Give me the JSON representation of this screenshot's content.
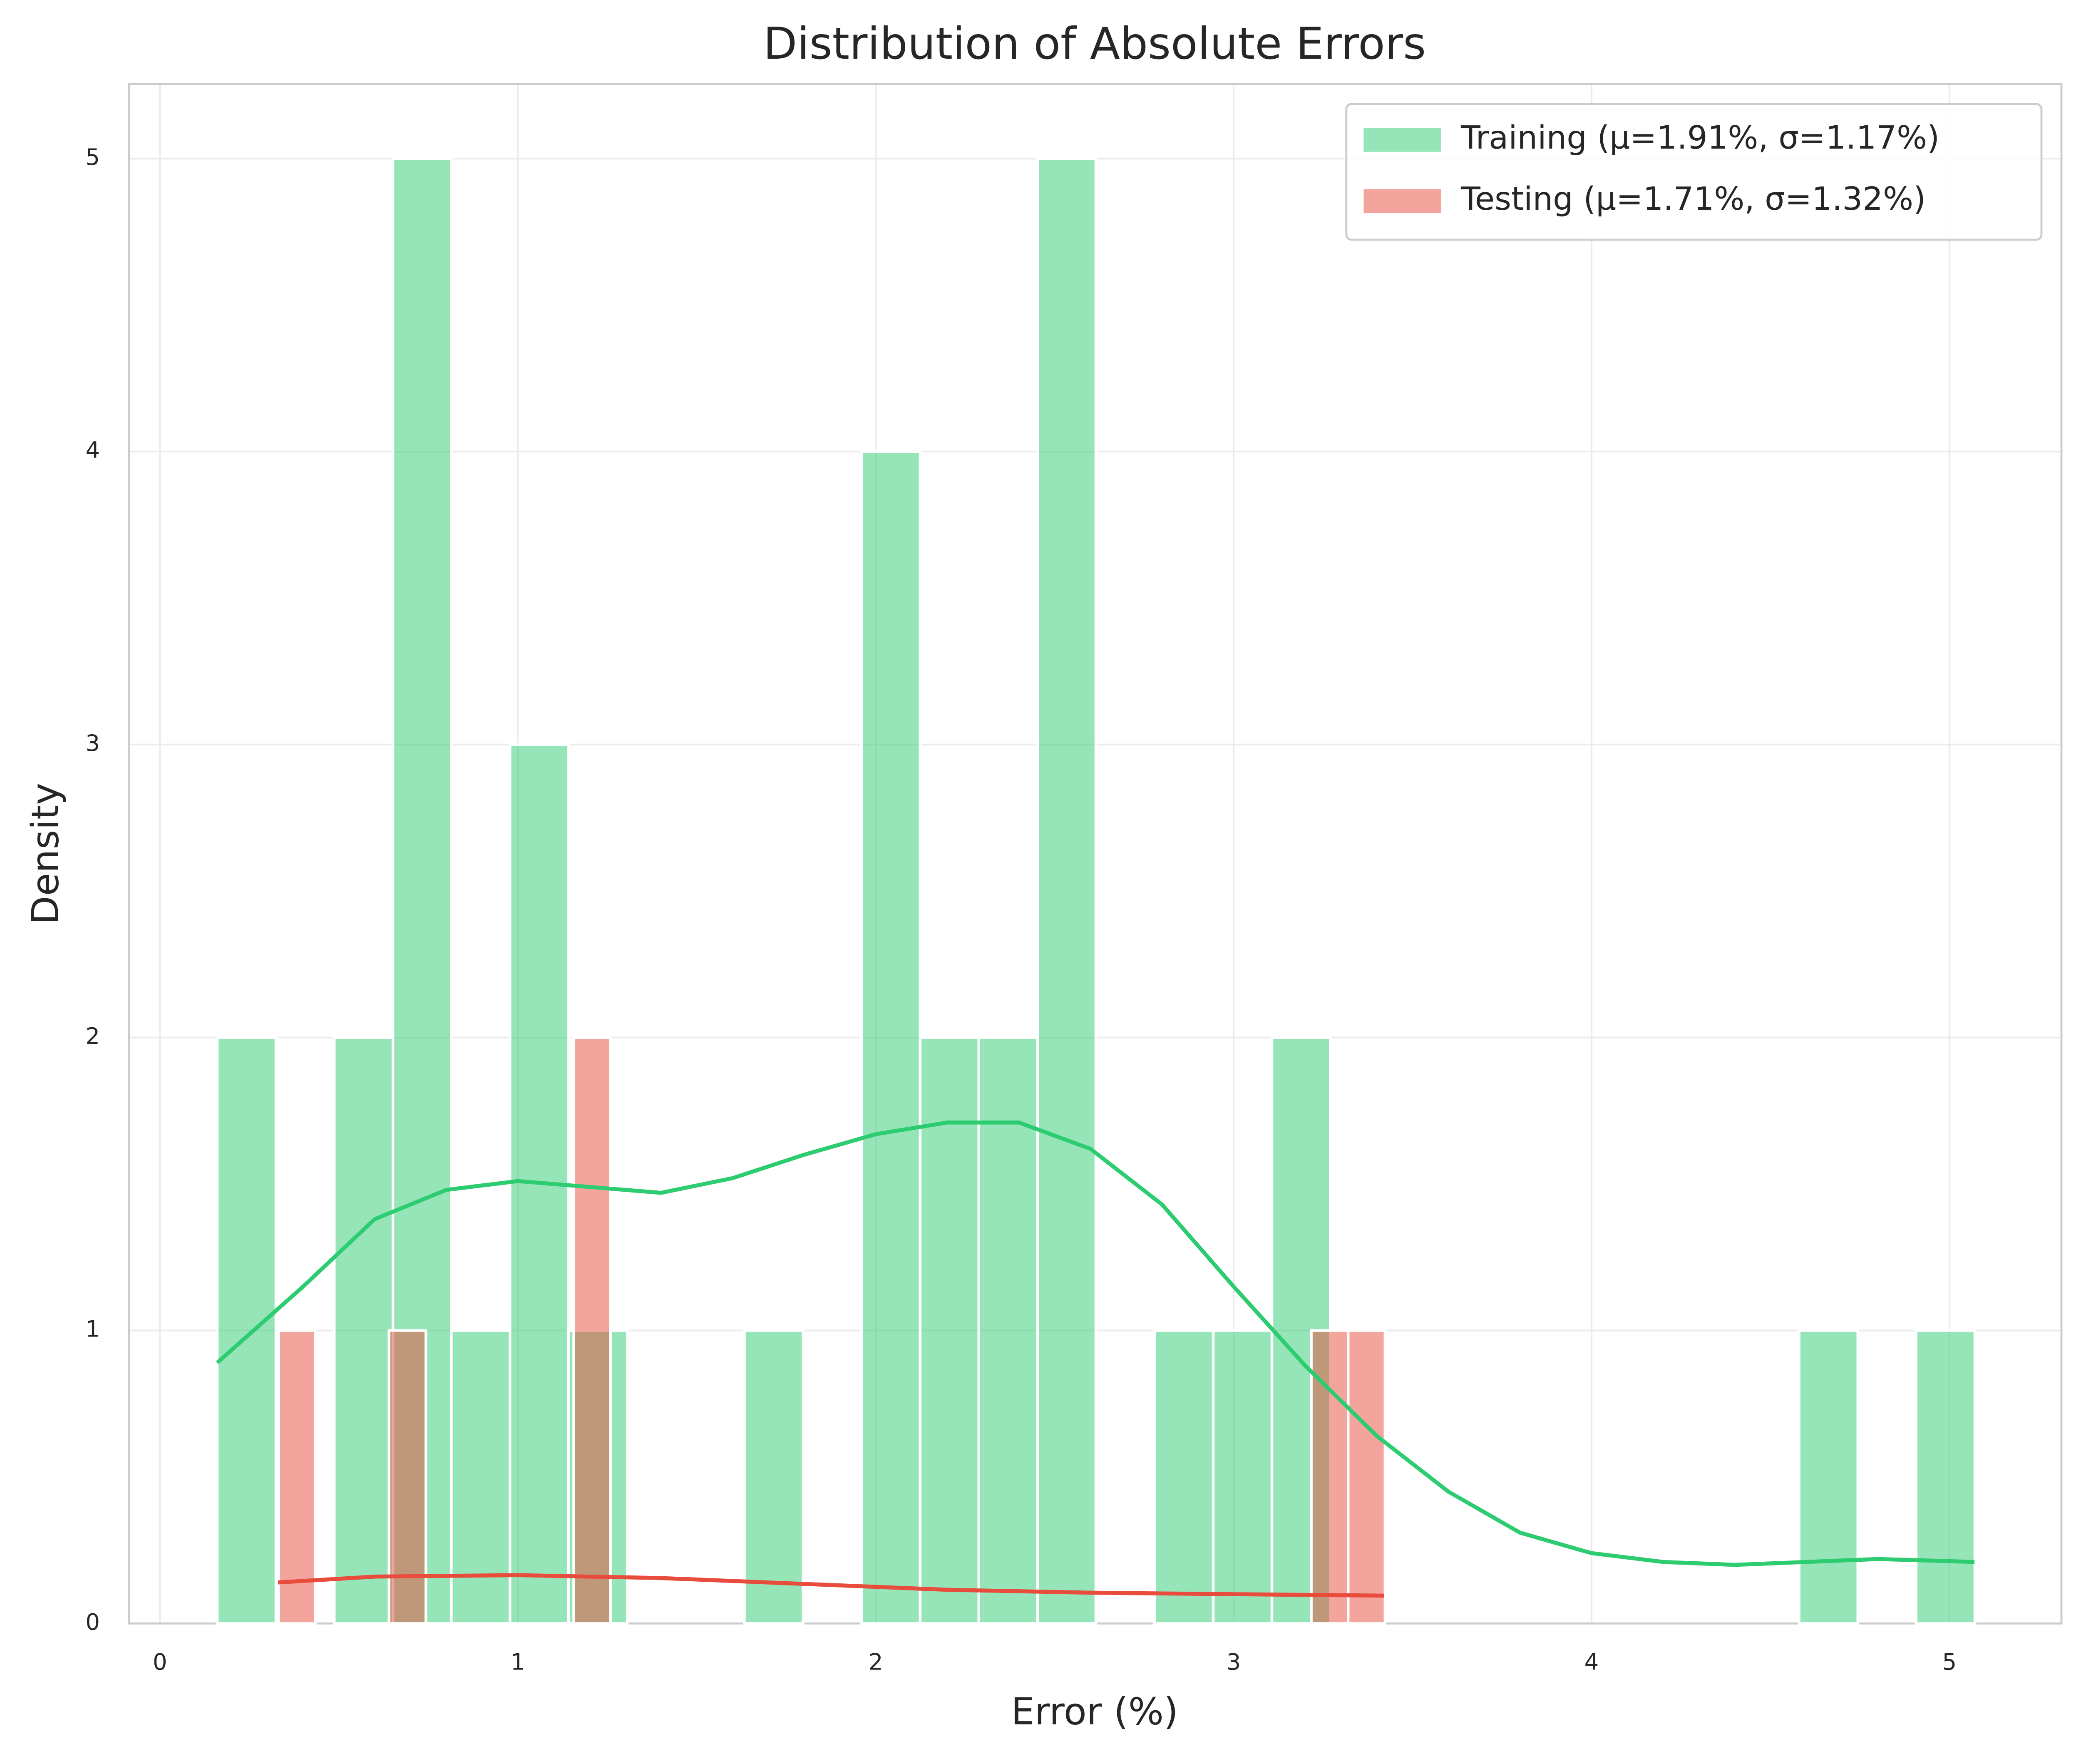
{
  "chart_data": {
    "type": "histogram",
    "title": "Distribution of Absolute Errors",
    "x_label": "Error (%)",
    "y_label": "Density",
    "xlim": [
      -0.086,
      5.313
    ],
    "ylim": [
      0,
      5.255
    ],
    "xticks": [
      0,
      1,
      2,
      3,
      4,
      5
    ],
    "yticks": [
      0,
      1,
      2,
      3,
      4,
      5
    ],
    "grid": true,
    "legend": "upper right",
    "series": [
      {
        "name": "Training (μ=1.91%, σ=1.17%)",
        "color": "#2ecc71",
        "bins": [
          0.16,
          0.324,
          0.487,
          0.651,
          0.814,
          0.978,
          1.142,
          1.306,
          1.47,
          1.633,
          1.797,
          1.96,
          2.124,
          2.288,
          2.452,
          2.615,
          2.779,
          2.943,
          3.107,
          3.27,
          3.434,
          3.598,
          3.761,
          3.925,
          4.089,
          4.252,
          4.416,
          4.58,
          4.744,
          4.907,
          5.071
        ],
        "values": [
          2,
          0,
          2,
          5,
          1,
          3,
          1,
          0,
          0,
          1,
          0,
          4,
          2,
          2,
          5,
          0,
          1,
          1,
          2,
          0,
          0,
          0,
          0,
          0,
          0,
          0,
          0,
          1,
          0,
          1
        ],
        "kde": {
          "x": [
            0.16,
            0.4,
            0.6,
            0.8,
            1.0,
            1.2,
            1.4,
            1.6,
            1.8,
            2.0,
            2.2,
            2.4,
            2.6,
            2.8,
            3.0,
            3.2,
            3.4,
            3.6,
            3.8,
            4.0,
            4.2,
            4.4,
            4.6,
            4.8,
            5.07
          ],
          "y": [
            0.89,
            1.15,
            1.38,
            1.48,
            1.51,
            1.49,
            1.47,
            1.52,
            1.6,
            1.67,
            1.71,
            1.71,
            1.62,
            1.43,
            1.15,
            0.88,
            0.64,
            0.45,
            0.31,
            0.24,
            0.21,
            0.2,
            0.21,
            0.22,
            0.21
          ]
        }
      },
      {
        "name": "Testing (μ=1.71%, σ=1.32%)",
        "color": "#e74c3c",
        "bins": [
          0.331,
          0.434,
          0.537,
          0.64,
          0.743,
          0.846,
          0.949,
          1.052,
          1.156,
          1.259,
          1.362,
          1.465,
          1.568,
          1.671,
          1.774,
          1.877,
          1.98,
          2.083,
          2.186,
          2.289,
          2.392,
          2.495,
          2.599,
          2.702,
          2.805,
          2.908,
          3.011,
          3.114,
          3.217,
          3.32,
          3.423
        ],
        "values": [
          1,
          0,
          0,
          1,
          0,
          0,
          0,
          0,
          2,
          0,
          0,
          0,
          0,
          0,
          0,
          0,
          0,
          0,
          0,
          0,
          0,
          0,
          0,
          0,
          0,
          0,
          0,
          0,
          1,
          1
        ],
        "kde": {
          "x": [
            0.33,
            0.6,
            1.0,
            1.4,
            1.8,
            2.2,
            2.6,
            3.0,
            3.42
          ],
          "y": [
            0.14,
            0.16,
            0.165,
            0.155,
            0.135,
            0.115,
            0.105,
            0.1,
            0.095
          ]
        }
      }
    ]
  }
}
